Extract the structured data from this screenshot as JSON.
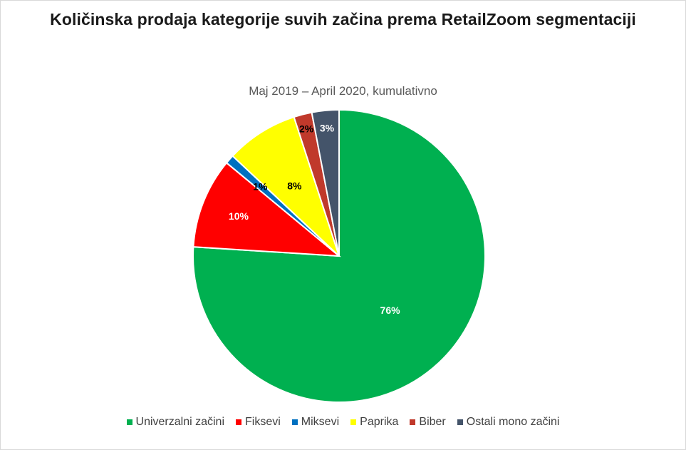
{
  "chart_data": {
    "type": "pie",
    "title": "Količinska prodaja kategorije suvih začina prema RetailZoom segmentaciji",
    "subtitle": "Maj 2019 – April 2020, kumulativno",
    "legend_position": "bottom",
    "slices": [
      {
        "name": "Univerzalni začini",
        "value": 76,
        "label": "76%",
        "color": "#00b050",
        "label_color": "#ffffff"
      },
      {
        "name": "Fiksevi",
        "value": 10,
        "label": "10%",
        "color": "#ff0000",
        "label_color": "#ffffff"
      },
      {
        "name": "Miksevi",
        "value": 1,
        "label": "1%",
        "color": "#0070c0",
        "label_color": "#000000"
      },
      {
        "name": "Paprika",
        "value": 8,
        "label": "8%",
        "color": "#ffff00",
        "label_color": "#000000"
      },
      {
        "name": "Biber",
        "value": 2,
        "label": "2%",
        "color": "#c0392b",
        "label_color": "#000000"
      },
      {
        "name": "Ostali mono začini",
        "value": 3,
        "label": "3%",
        "color": "#44546a",
        "label_color": "#ffffff"
      }
    ]
  }
}
